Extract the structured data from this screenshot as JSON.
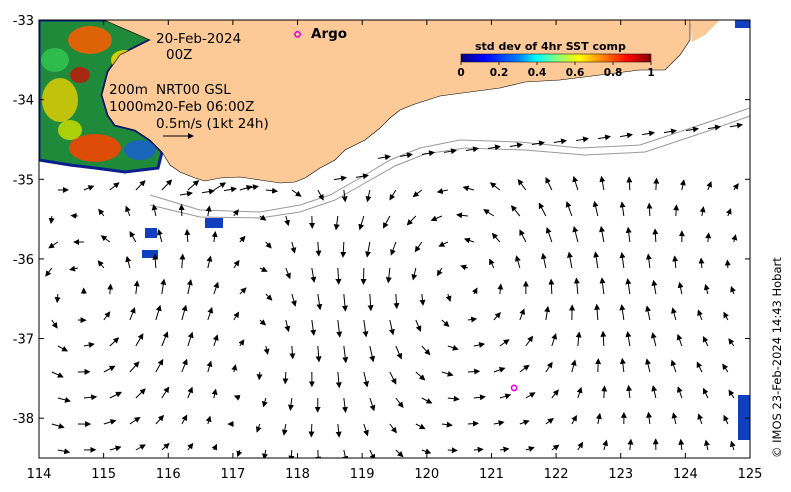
{
  "map": {
    "date_label": "20-Feb-2024",
    "time_label": "00Z",
    "depth_label": "200m",
    "depth2_label": "1000m",
    "model_label": "NRT00 GSL",
    "model_time_label": "20-Feb 06:00Z",
    "scale_label": "0.5m/s (1kt 24h)",
    "argo_label": "Argo",
    "credit": "© IMOS 23-Feb-2024 14:43 Hobart",
    "land_color": "#fcc997",
    "argo_color": "#e600e6",
    "x_ticks": [
      "114",
      "115",
      "116",
      "117",
      "118",
      "119",
      "120",
      "121",
      "122",
      "123",
      "124",
      "125"
    ],
    "y_ticks": [
      "-33",
      "-34",
      "-35",
      "-36",
      "-37",
      "-38"
    ],
    "lon_range": [
      114,
      125
    ],
    "lat_range": [
      -38.5,
      -33
    ]
  },
  "colorbar": {
    "title": "std dev of 4hr SST comp",
    "ticks": [
      "0",
      "0.2",
      "0.4",
      "0.6",
      "0.8",
      "1"
    ],
    "colors": [
      "#00007f",
      "#0000ff",
      "#007fff",
      "#00ffff",
      "#7fff7f",
      "#ffff00",
      "#ff7f00",
      "#ff0000",
      "#7f0000"
    ]
  },
  "argo_floats": [
    {
      "lon": 118.0,
      "lat": -33.18
    },
    {
      "lon": 121.35,
      "lat": -37.62
    }
  ]
}
